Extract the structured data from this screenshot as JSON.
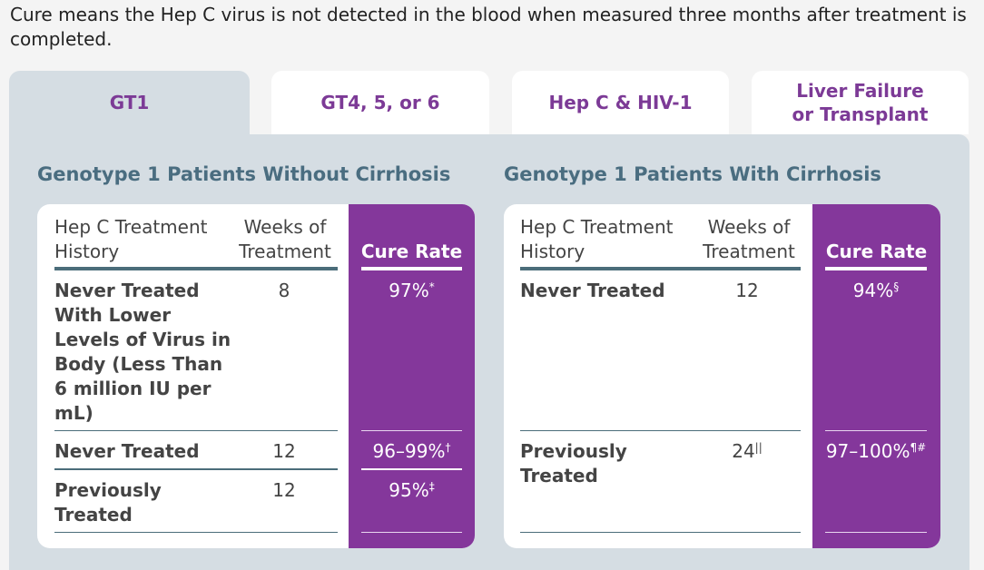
{
  "intro": "Cure means the Hep C virus is not detected in the blood when measured three months after treatment is completed.",
  "tabs": [
    {
      "label": "GT1",
      "active": true
    },
    {
      "label": "GT4, 5, or 6",
      "active": false
    },
    {
      "label": "Hep C & HIV-1",
      "active": false
    },
    {
      "label": "Liver Failure or Transplant",
      "active": false
    }
  ],
  "colors": {
    "brand_purple": "#84379b",
    "tab_text": "#7c3a96",
    "section_title": "#4a6d80",
    "panel": "#d5dde3"
  },
  "left": {
    "title": "Genotype 1 Patients Without Cirrhosis",
    "headers": {
      "history": "Hep C Treatment History",
      "weeks": "Weeks of Treatment",
      "cure": "Cure Rate"
    },
    "rows": [
      {
        "history": "Never Treated With Lower Levels of Virus in Body (Less Than 6 million IU per mL)",
        "weeks": "8",
        "cure": "97%",
        "cure_mark": "*"
      },
      {
        "history": "Never Treated",
        "weeks": "12",
        "cure": "96–99%",
        "cure_mark": "†"
      },
      {
        "history": "Previously Treated",
        "weeks": "12",
        "cure": "95%",
        "cure_mark": "‡"
      }
    ]
  },
  "right": {
    "title": "Genotype 1 Patients With Cirrhosis",
    "headers": {
      "history": "Hep C Treatment History",
      "weeks": "Weeks of Treatment",
      "cure": "Cure Rate"
    },
    "rows": [
      {
        "history": "Never Treated",
        "weeks": "12",
        "weeks_mark": "",
        "cure": "94%",
        "cure_mark": "§"
      },
      {
        "history": "Previously Treated",
        "weeks": "24",
        "weeks_mark": "||",
        "cure": "97–100%",
        "cure_mark": "¶#"
      }
    ]
  }
}
